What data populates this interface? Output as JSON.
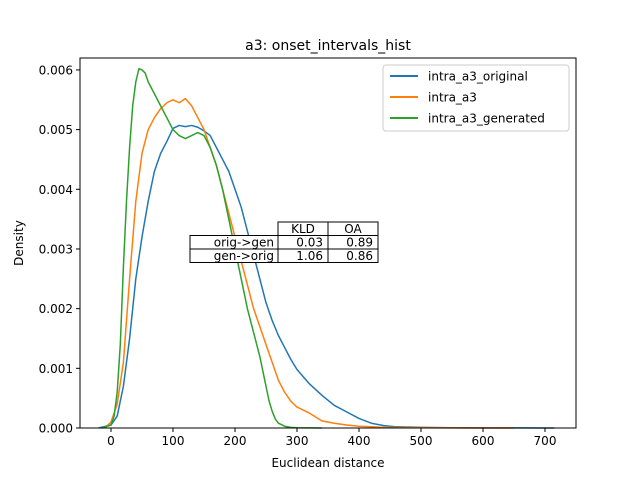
{
  "chart_data": {
    "type": "line",
    "title": "a3: onset_intervals_hist",
    "xlabel": "Euclidean distance",
    "ylabel": "Density",
    "xlim": [
      -50,
      750
    ],
    "ylim": [
      0,
      0.0062
    ],
    "x_ticks": [
      0,
      100,
      200,
      300,
      400,
      500,
      600,
      700
    ],
    "x_tick_labels": [
      "0",
      "100",
      "200",
      "300",
      "400",
      "500",
      "600",
      "700"
    ],
    "y_ticks": [
      0,
      0.001,
      0.002,
      0.003,
      0.004,
      0.005,
      0.006
    ],
    "y_tick_labels": [
      "0.000",
      "0.001",
      "0.002",
      "0.003",
      "0.004",
      "0.005",
      "0.006"
    ],
    "grid": false,
    "legend_position": "top-right",
    "series": [
      {
        "name": "intra_a3_original",
        "color": "#1f77b4",
        "x": [
          -20,
          0,
          10,
          20,
          30,
          40,
          50,
          60,
          70,
          80,
          90,
          100,
          110,
          120,
          130,
          140,
          150,
          160,
          170,
          180,
          190,
          200,
          210,
          220,
          230,
          240,
          250,
          260,
          270,
          280,
          290,
          300,
          320,
          340,
          360,
          380,
          400,
          420,
          440,
          460,
          500,
          550,
          600,
          650,
          700,
          715
        ],
        "y": [
          0,
          5e-05,
          0.0002,
          0.0007,
          0.0015,
          0.0025,
          0.0032,
          0.0038,
          0.0043,
          0.0046,
          0.0048,
          0.00502,
          0.00507,
          0.00505,
          0.00507,
          0.00504,
          0.00498,
          0.0049,
          0.0047,
          0.0045,
          0.0043,
          0.004,
          0.0037,
          0.0033,
          0.0029,
          0.0025,
          0.0021,
          0.0018,
          0.00155,
          0.00135,
          0.00115,
          0.00098,
          0.00074,
          0.00055,
          0.00038,
          0.00027,
          0.00016,
          8e-05,
          4e-05,
          2e-05,
          1e-05,
          5e-06,
          3e-06,
          2e-06,
          1e-06,
          0
        ]
      },
      {
        "name": "intra_a3",
        "color": "#ff7f0e",
        "x": [
          -10,
          0,
          10,
          20,
          30,
          40,
          50,
          60,
          70,
          80,
          90,
          100,
          110,
          120,
          130,
          140,
          150,
          160,
          170,
          180,
          190,
          200,
          210,
          220,
          230,
          240,
          250,
          260,
          270,
          280,
          290,
          300,
          320,
          340,
          360,
          380,
          400,
          420,
          440,
          500,
          550,
          600,
          650
        ],
        "y": [
          0,
          0.0001,
          0.0004,
          0.0011,
          0.0025,
          0.0038,
          0.0046,
          0.005,
          0.0052,
          0.00535,
          0.00545,
          0.0055,
          0.00545,
          0.00552,
          0.0054,
          0.0052,
          0.005,
          0.0047,
          0.0044,
          0.004,
          0.0036,
          0.0032,
          0.0028,
          0.0024,
          0.002,
          0.0017,
          0.0014,
          0.0011,
          0.0008,
          0.0006,
          0.00045,
          0.00035,
          0.00025,
          0.00012,
          8e-05,
          5e-05,
          3e-05,
          2e-05,
          1e-05,
          5e-06,
          2e-06,
          1e-06,
          0
        ]
      },
      {
        "name": "intra_a3_generated",
        "color": "#2ca02c",
        "x": [
          -15,
          0,
          5,
          10,
          15,
          20,
          25,
          30,
          35,
          40,
          45,
          50,
          55,
          60,
          70,
          80,
          90,
          100,
          110,
          120,
          130,
          140,
          150,
          160,
          170,
          180,
          190,
          200,
          210,
          220,
          230,
          240,
          250,
          255,
          260,
          265,
          270,
          280,
          290,
          300,
          320,
          340
        ],
        "y": [
          0,
          5e-05,
          0.0002,
          0.0006,
          0.0014,
          0.0027,
          0.0038,
          0.0047,
          0.0054,
          0.0058,
          0.00602,
          0.006,
          0.00595,
          0.0058,
          0.0056,
          0.0054,
          0.0052,
          0.005,
          0.0049,
          0.00485,
          0.0049,
          0.00495,
          0.0049,
          0.0047,
          0.0044,
          0.004,
          0.0035,
          0.003,
          0.0025,
          0.002,
          0.0016,
          0.0012,
          0.0007,
          0.00045,
          0.00028,
          0.00015,
          8e-05,
          3e-05,
          1e-05,
          5e-06,
          2e-06,
          0
        ]
      }
    ],
    "table": {
      "col_labels": [
        "KLD",
        "OA"
      ],
      "row_labels": [
        "orig->gen",
        "gen->orig"
      ],
      "cells": [
        [
          "0.03",
          "0.89"
        ],
        [
          "1.06",
          "0.86"
        ]
      ]
    }
  }
}
